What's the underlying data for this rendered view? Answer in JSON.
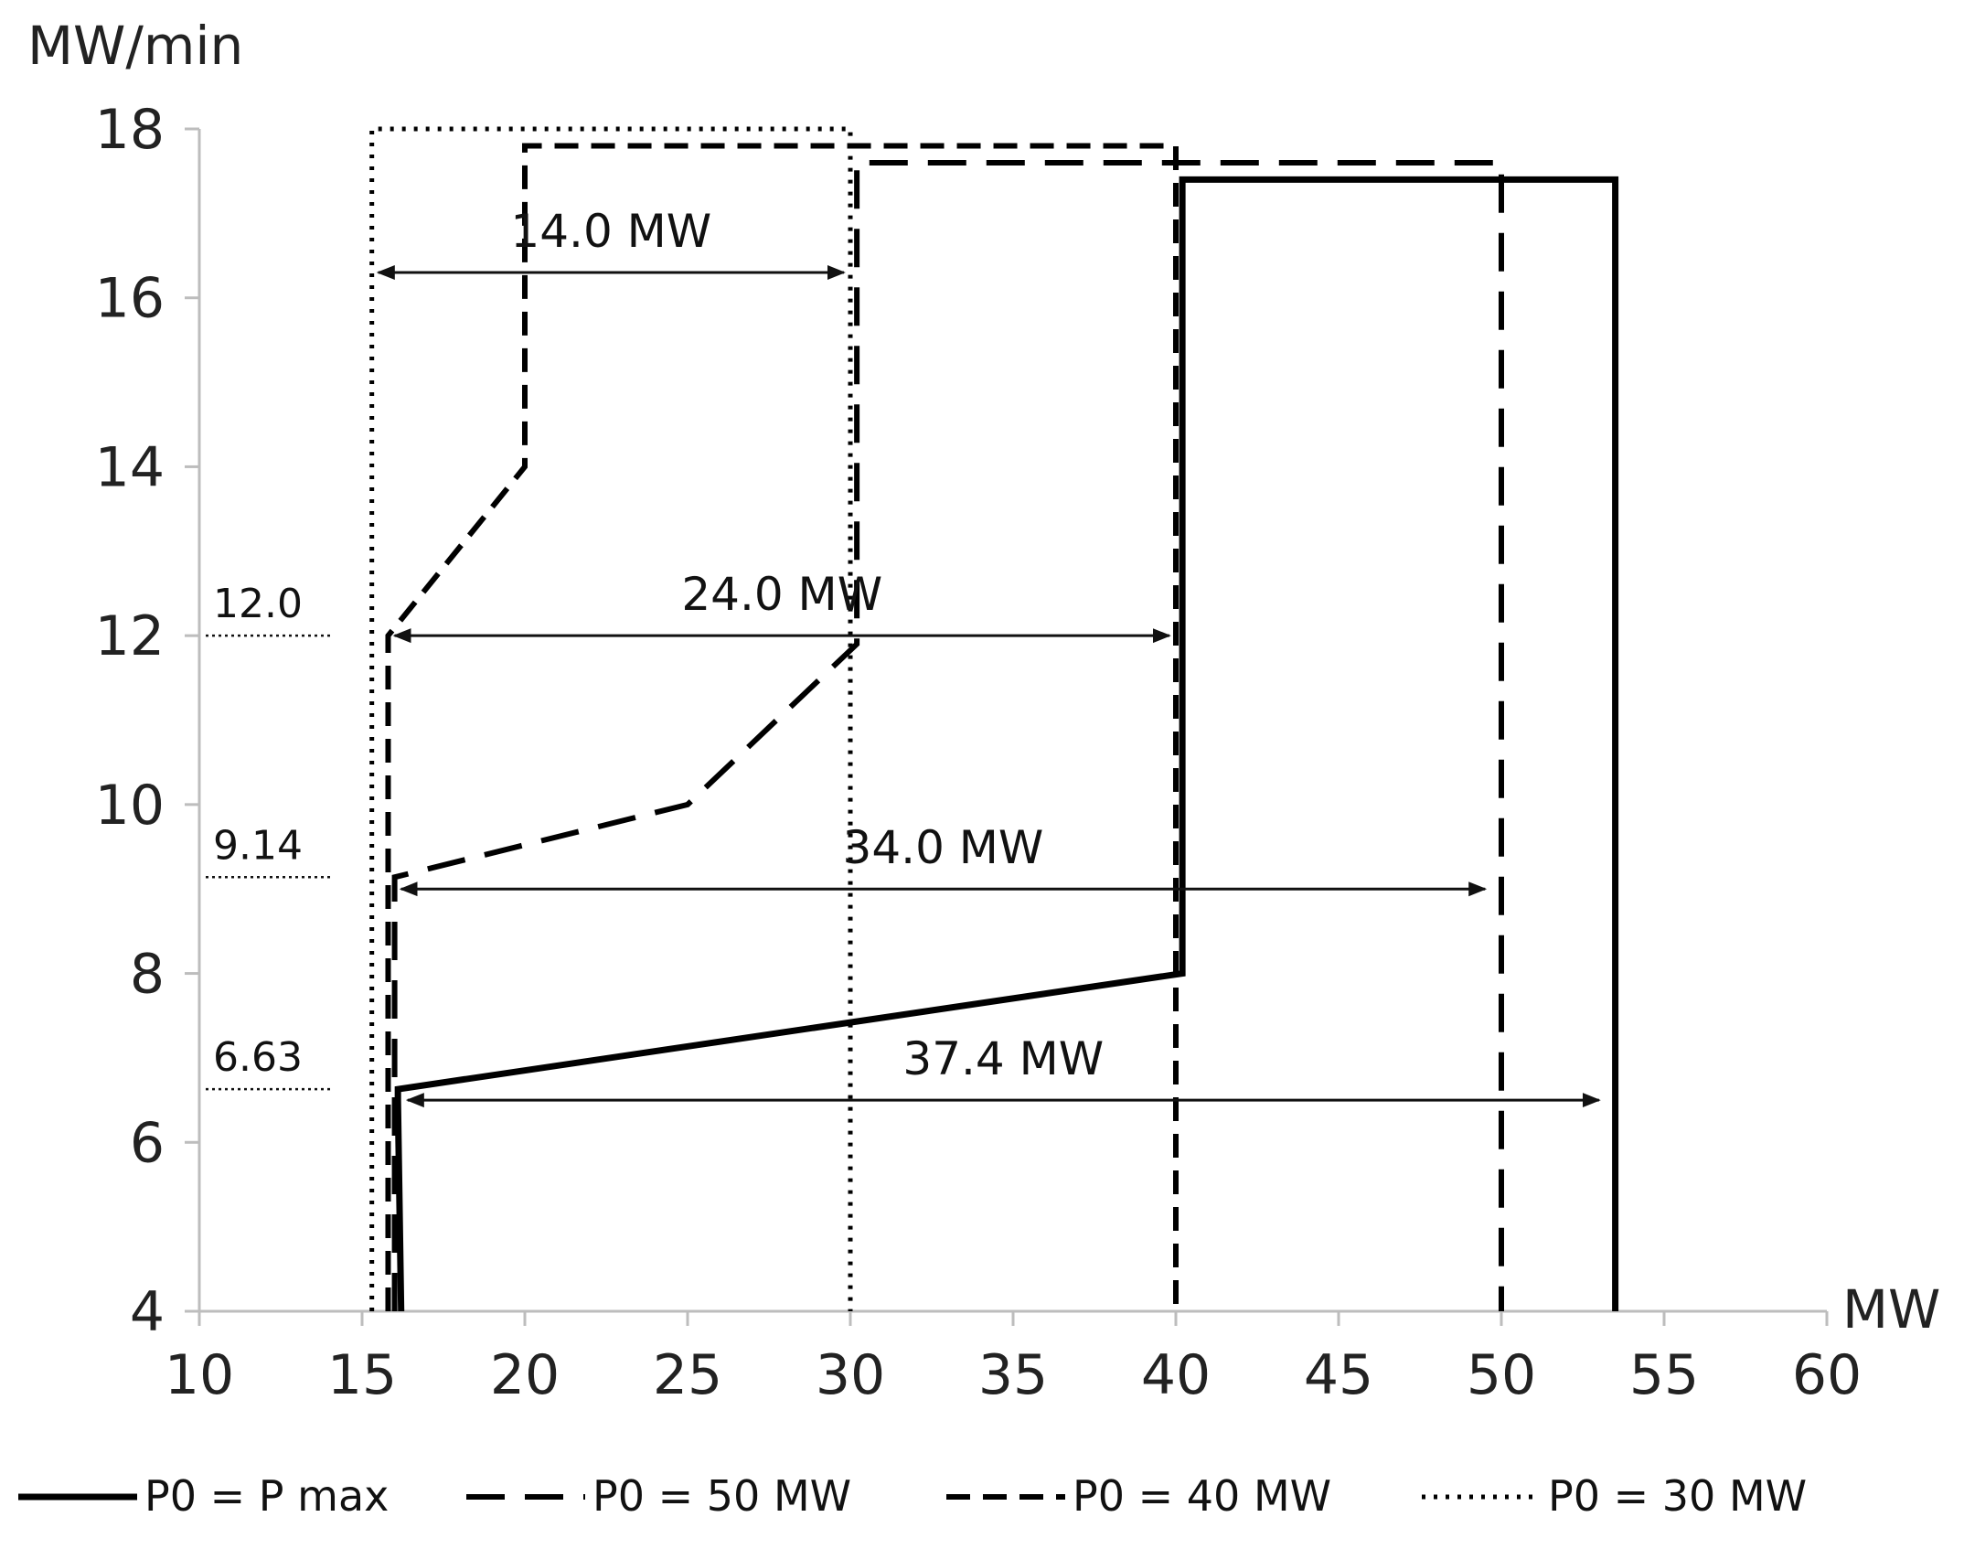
{
  "chart_data": {
    "type": "line",
    "title": "",
    "xlabel": "MW",
    "ylabel": "MW/min",
    "xlim": [
      10,
      60
    ],
    "ylim": [
      4,
      18
    ],
    "x_ticks": [
      10,
      15,
      20,
      25,
      30,
      35,
      40,
      45,
      50,
      55,
      60
    ],
    "y_ticks": [
      4,
      6,
      8,
      10,
      12,
      14,
      16,
      18
    ],
    "grid": false,
    "legend_position": "bottom",
    "series": [
      {
        "name": "P0 = P max",
        "style": "solid",
        "x": [
          16.2,
          16.1,
          16.1,
          40.2,
          40.2,
          53.5,
          53.5
        ],
        "y": [
          4,
          6.5,
          6.63,
          8.0,
          17.4,
          17.4,
          4
        ]
      },
      {
        "name": "P0 = 50 MW",
        "style": "long-dash",
        "x": [
          16.0,
          16.0,
          25.0,
          30.2,
          30.2,
          50.0,
          50.0
        ],
        "y": [
          4,
          9.14,
          10.0,
          11.9,
          17.6,
          17.6,
          4
        ]
      },
      {
        "name": "P0 = 40 MW",
        "style": "dash",
        "x": [
          15.8,
          15.8,
          20.0,
          20.0,
          40.0,
          40.0
        ],
        "y": [
          4,
          12.0,
          14.0,
          17.8,
          17.8,
          4
        ]
      },
      {
        "name": "P0 = 30 MW",
        "style": "dotted",
        "x": [
          15.3,
          15.3,
          30.0,
          30.0
        ],
        "y": [
          4,
          18.0,
          18.0,
          4
        ]
      }
    ],
    "reference_lines": [
      {
        "label": "12.0",
        "y": 12.0
      },
      {
        "label": "9.14",
        "y": 9.14
      },
      {
        "label": "6.63",
        "y": 6.63
      }
    ],
    "annotations": [
      {
        "text": "14.0 MW",
        "y": 16.3,
        "x_from": 15.5,
        "x_to": 29.8
      },
      {
        "text": "24.0 MW",
        "y": 12.0,
        "x_from": 16.0,
        "x_to": 39.8
      },
      {
        "text": "34.0 MW",
        "y": 9.0,
        "x_from": 16.2,
        "x_to": 49.5
      },
      {
        "text": "37.4 MW",
        "y": 6.5,
        "x_from": 16.4,
        "x_to": 53.0
      }
    ]
  }
}
